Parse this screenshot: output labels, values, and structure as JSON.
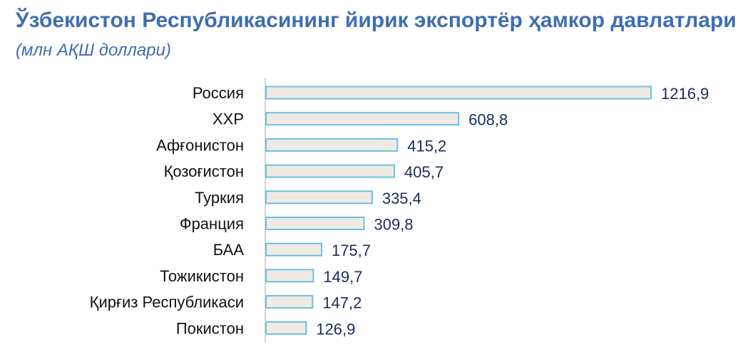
{
  "title": "Ўзбекистон Республикасининг йирик экспортёр ҳамкор давлатлари",
  "subtitle": "(млн АҚШ доллари)",
  "colors": {
    "title": "#3f6eb0",
    "bar_fill": "#efebe4",
    "bar_stroke": "#6cc0de",
    "value_text": "#1a2c5c",
    "category_text": "#111111"
  },
  "chart_data": {
    "type": "bar",
    "orientation": "horizontal",
    "title": "Ўзбекистон Республикасининг йирик экспортёр ҳамкор давлатлари",
    "subtitle": "(млн АҚШ доллари)",
    "xlabel": "",
    "ylabel": "",
    "grid": false,
    "legend": "none",
    "categories": [
      "Россия",
      "ХХР",
      "Афғонистон",
      "Қозоғистон",
      "Туркия",
      "Франция",
      "БАА",
      "Тожикистон",
      "Қирғиз Республикаси",
      "Покистон"
    ],
    "values": [
      1216.9,
      608.8,
      415.2,
      405.7,
      335.4,
      309.8,
      175.7,
      149.7,
      147.2,
      126.9
    ],
    "value_labels": [
      "1216,9",
      "608,8",
      "415,2",
      "405,7",
      "335,4",
      "309,8",
      "175,7",
      "149,7",
      "147,2",
      "126,9"
    ]
  }
}
